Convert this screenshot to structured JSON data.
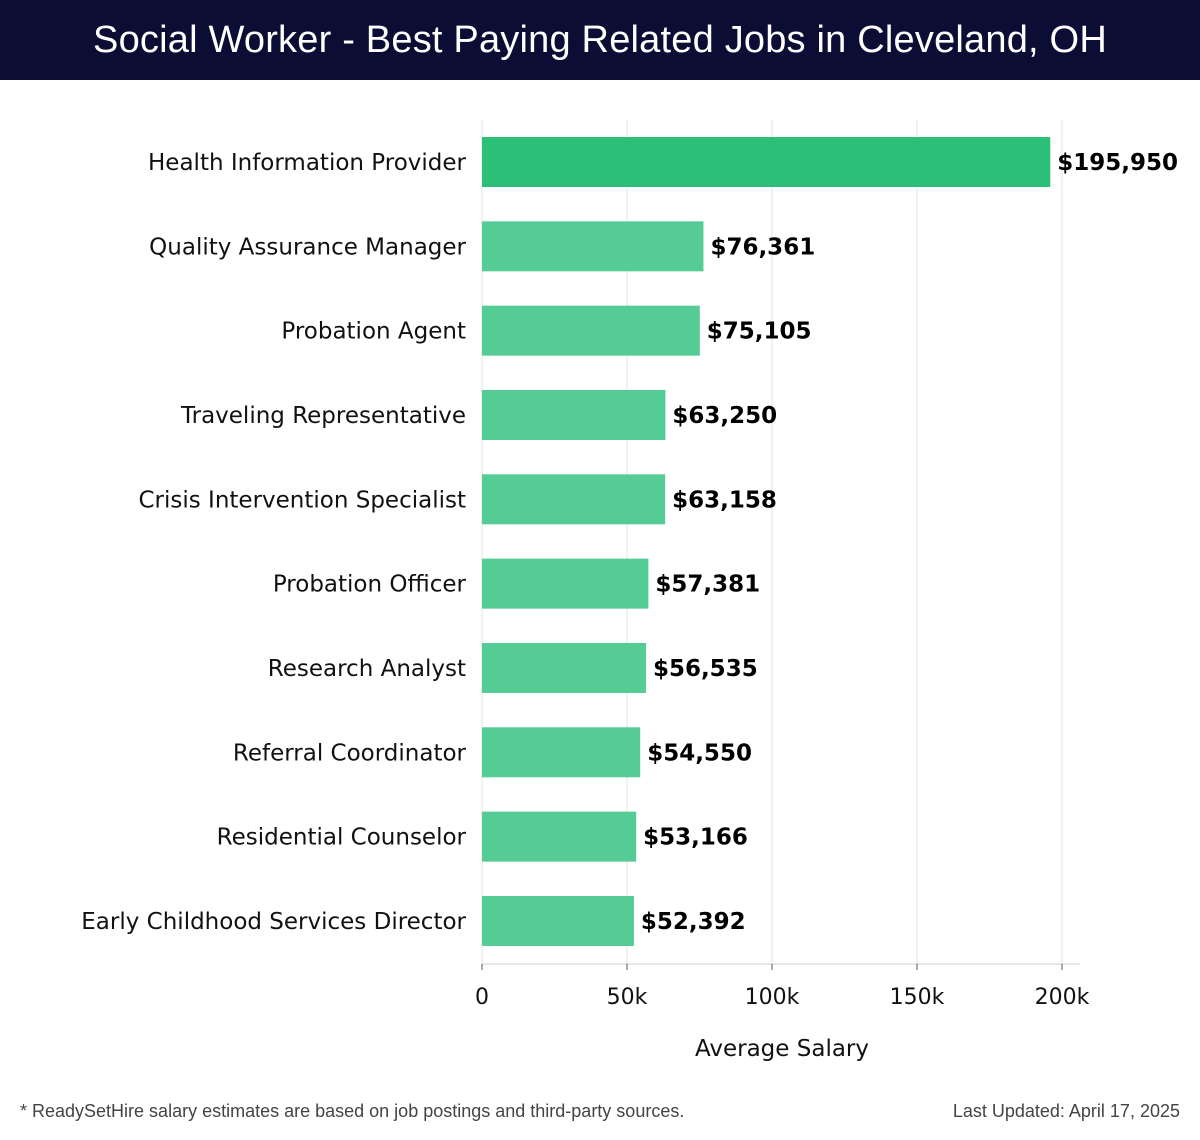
{
  "header": {
    "title": "Social Worker - Best Paying Related Jobs in Cleveland, OH"
  },
  "colors": {
    "header_bg": "#0b0d35",
    "bar_top": "#2bbf78",
    "bar": "#55cc95",
    "grid": "#e3e3e3",
    "axis": "#cccccc"
  },
  "chart_data": {
    "type": "bar",
    "orientation": "horizontal",
    "categories": [
      "Health Information Provider",
      "Quality Assurance Manager",
      "Probation Agent",
      "Traveling Representative",
      "Crisis Intervention Specialist",
      "Probation Officer",
      "Research Analyst",
      "Referral Coordinator",
      "Residential Counselor",
      "Early Childhood Services Director"
    ],
    "values": [
      195950,
      76361,
      75105,
      63250,
      63158,
      57381,
      56535,
      54550,
      53166,
      52392
    ],
    "value_labels": [
      "$195,950",
      "$76,361",
      "$75,105",
      "$63,250",
      "$63,158",
      "$57,381",
      "$56,535",
      "$54,550",
      "$53,166",
      "$52,392"
    ],
    "xlabel": "Average Salary",
    "ylabel": "",
    "xlim": [
      0,
      200000
    ],
    "xticks": [
      0,
      50000,
      100000,
      150000,
      200000
    ],
    "xtick_labels": [
      "0",
      "50k",
      "100k",
      "150k",
      "200k"
    ],
    "grid": true,
    "legend": "none"
  },
  "footer": {
    "note": "* ReadySetHire salary estimates are based on job postings and third-party sources.",
    "updated": "Last Updated: April 17, 2025"
  }
}
